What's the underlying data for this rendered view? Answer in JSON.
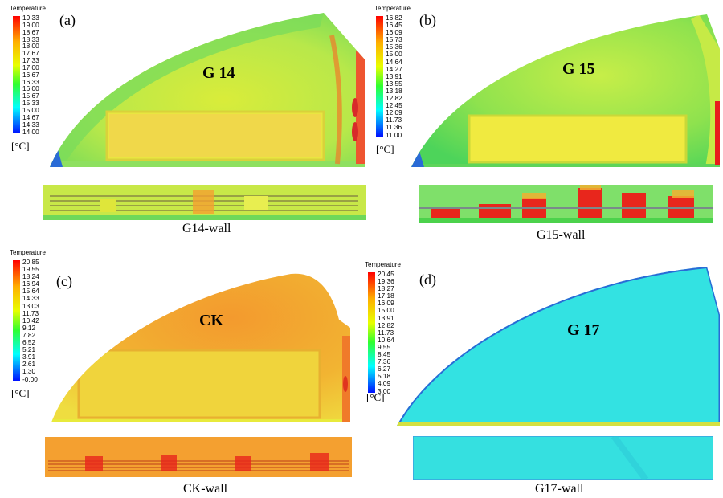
{
  "panels": [
    {
      "id": "a",
      "panel_label": "(a)",
      "label": "G 14",
      "wall_label": "G14-wall",
      "legend": {
        "title": "Temperature",
        "unit": "[°C]",
        "ticks": [
          "19.33",
          "19.00",
          "18.67",
          "18.33",
          "18.00",
          "17.67",
          "17.33",
          "17.00",
          "16.67",
          "16.33",
          "16.00",
          "15.67",
          "15.33",
          "15.00",
          "14.67",
          "14.33",
          "14.00"
        ]
      }
    },
    {
      "id": "b",
      "panel_label": "(b)",
      "label": "G 15",
      "wall_label": "G15-wall",
      "legend": {
        "title": "Temperature",
        "unit": "[°C]",
        "ticks": [
          "16.82",
          "16.45",
          "16.09",
          "15.73",
          "15.36",
          "15.00",
          "14.64",
          "14.27",
          "13.91",
          "13.55",
          "13.18",
          "12.82",
          "12.45",
          "12.09",
          "11.73",
          "11.36",
          "11.00"
        ]
      }
    },
    {
      "id": "c",
      "panel_label": "(c)",
      "label": "CK",
      "wall_label": "CK-wall",
      "legend": {
        "title": "Temperature",
        "unit": "[°C]",
        "ticks": [
          "20.85",
          "19.55",
          "18.24",
          "16.94",
          "15.64",
          "14.33",
          "13.03",
          "11.73",
          "10.42",
          "9.12",
          "7.82",
          "6.52",
          "5.21",
          "3.91",
          "2.61",
          "1.30",
          "-0.00"
        ]
      }
    },
    {
      "id": "d",
      "panel_label": "(d)",
      "label": "G 17",
      "wall_label": "G17-wall",
      "legend": {
        "title": "Temperature",
        "unit": "[°C]",
        "ticks": [
          "20.45",
          "19.36",
          "18.27",
          "17.18",
          "16.09",
          "15.00",
          "13.91",
          "12.82",
          "11.73",
          "10.64",
          "9.55",
          "8.45",
          "7.36",
          "6.27",
          "5.18",
          "4.09",
          "3.00"
        ]
      }
    }
  ],
  "colors": {
    "colormap": [
      "#ff0000",
      "#ff8800",
      "#ffff00",
      "#00ff00",
      "#00ffff",
      "#0000ff"
    ],
    "yellow_green": "#c8ec40",
    "green": "#7ee048",
    "orange": "#f59a2c",
    "cyan": "#2fe6e6",
    "red": "#e8261c"
  }
}
